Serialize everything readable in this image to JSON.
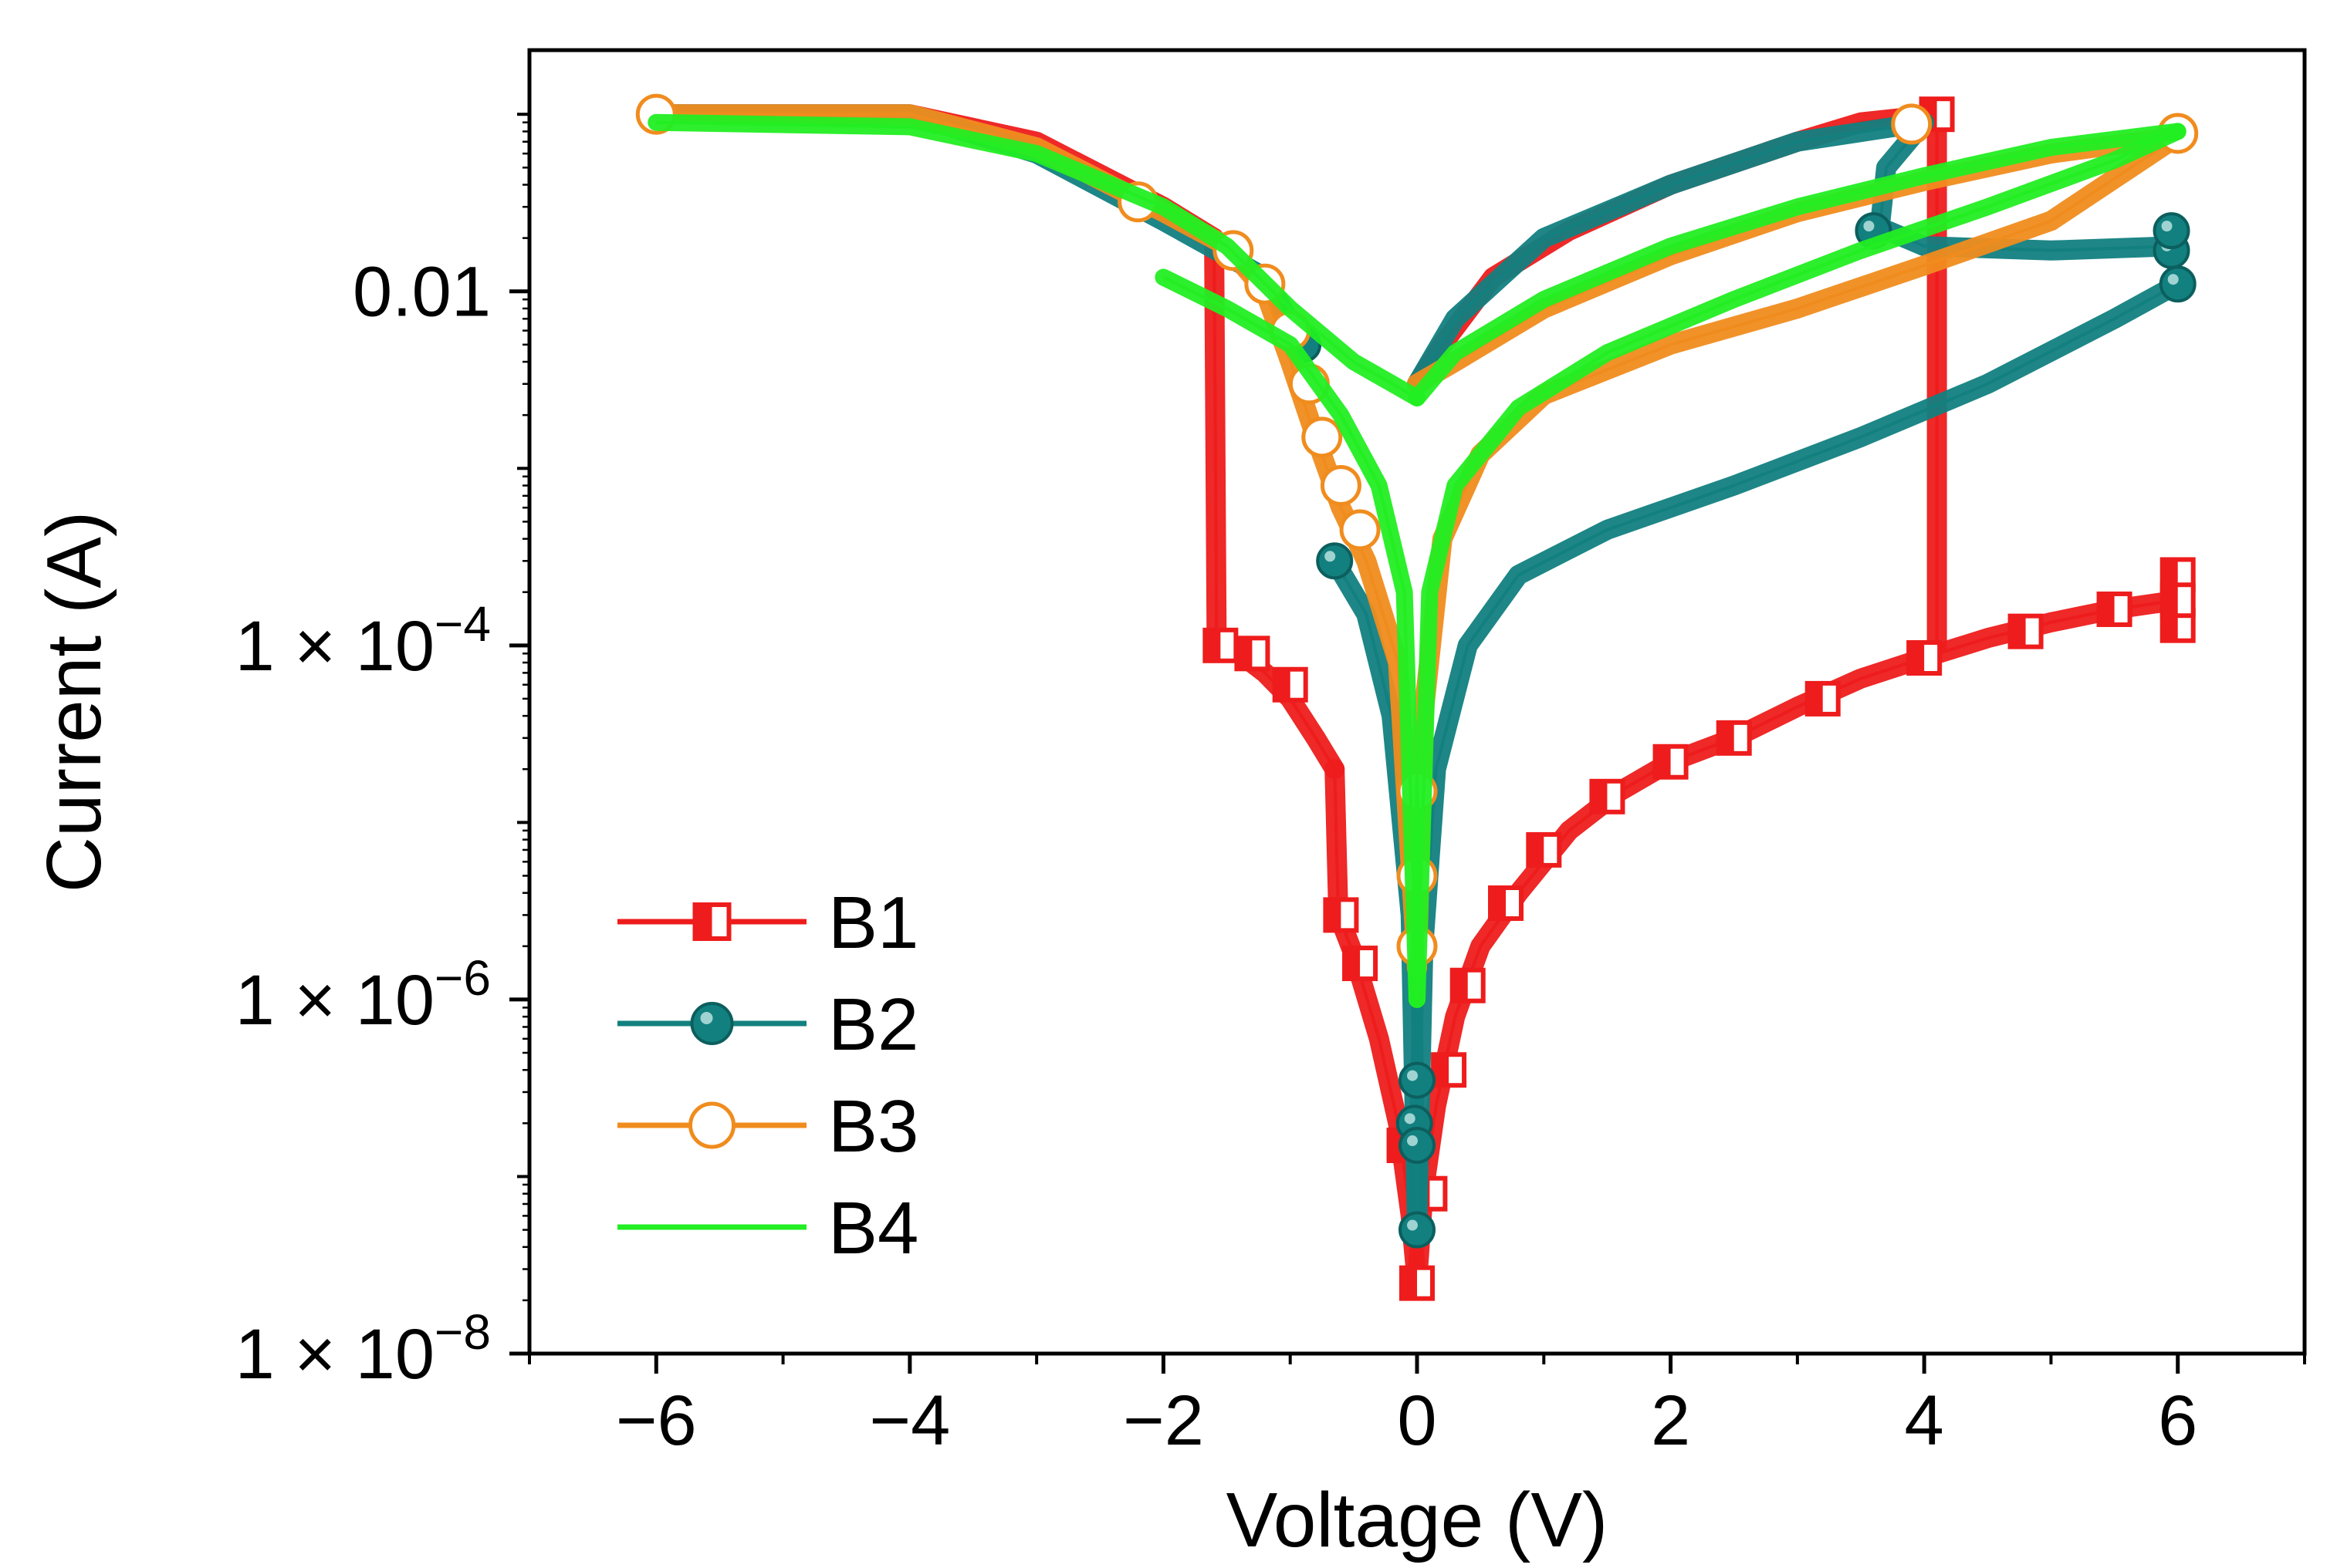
{
  "chart_data": {
    "type": "scatter",
    "title": "",
    "xlabel": "Voltage (V)",
    "ylabel": "Current (A)",
    "xscale": "linear",
    "yscale": "log",
    "xlim": [
      -7,
      7
    ],
    "ylim": [
      1e-08,
      0.12
    ],
    "xticks": [
      -6,
      -4,
      -2,
      0,
      2,
      4,
      6
    ],
    "xtick_labels": [
      "−6",
      "−4",
      "−2",
      "0",
      "2",
      "4",
      "6"
    ],
    "yticks": [
      {
        "value": 1e-08,
        "mantissa": "1 × 10",
        "exponent": "−8"
      },
      {
        "value": 1e-06,
        "mantissa": "1 × 10",
        "exponent": "−6"
      },
      {
        "value": 0.0001,
        "mantissa": "1 × 10",
        "exponent": "−4"
      },
      {
        "value": 0.01,
        "mantissa": "0.01",
        "exponent": ""
      }
    ],
    "legend": {
      "position": "lower-left",
      "entries": [
        "B1",
        "B2",
        "B3",
        "B4"
      ]
    },
    "series": [
      {
        "name": "B1",
        "color": "#ee1c1c",
        "marker": "half-filled-square",
        "segments": [
          [
            [
              -6,
              0.1
            ],
            [
              -4,
              0.1
            ],
            [
              -3,
              0.07
            ],
            [
              -2,
              0.03
            ],
            [
              -1.6,
              0.02
            ]
          ],
          [
            [
              -1.6,
              0.02
            ],
            [
              -1.58,
              0.0001
            ]
          ],
          [
            [
              -1.58,
              0.0001
            ],
            [
              -1.4,
              9e-05
            ],
            [
              -1.2,
              7e-05
            ],
            [
              -1.0,
              5e-05
            ],
            [
              -0.8,
              3e-05
            ],
            [
              -0.65,
              2e-05
            ]
          ],
          [
            [
              -0.65,
              2e-05
            ],
            [
              -0.62,
              3e-06
            ],
            [
              -0.5,
              1.8e-06
            ],
            [
              -0.3,
              6e-07
            ],
            [
              -0.15,
              2e-07
            ],
            [
              -0.05,
              6e-08
            ],
            [
              0,
              2.5e-08
            ]
          ],
          [
            [
              0,
              2.5e-08
            ],
            [
              0.05,
              8e-08
            ],
            [
              0.15,
              2.5e-07
            ],
            [
              0.3,
              8e-07
            ],
            [
              0.5,
              2e-06
            ],
            [
              0.8,
              4e-06
            ],
            [
              1.2,
              9e-06
            ],
            [
              1.6,
              1.5e-05
            ],
            [
              2.0,
              2.2e-05
            ],
            [
              2.5,
              3e-05
            ],
            [
              3.0,
              4.5e-05
            ],
            [
              3.5,
              6.5e-05
            ],
            [
              4.0,
              8.5e-05
            ],
            [
              4.5,
              0.00011
            ],
            [
              5.0,
              0.000135
            ],
            [
              5.5,
              0.00016
            ],
            [
              6.0,
              0.00018
            ]
          ],
          [
            [
              4.1,
              0.1
            ],
            [
              4.1,
              0.0001
            ]
          ],
          [
            [
              4.1,
              0.1
            ],
            [
              3.5,
              0.09
            ],
            [
              3.0,
              0.07
            ],
            [
              2.0,
              0.04
            ],
            [
              1.2,
              0.022
            ],
            [
              0.6,
              0.012
            ],
            [
              0.2,
              0.005
            ],
            [
              0,
              0.003
            ]
          ]
        ],
        "markers": [
          [
            -1.55,
            0.0001
          ],
          [
            -1.3,
            9e-05
          ],
          [
            -1.0,
            6e-05
          ],
          [
            -0.6,
            3e-06
          ],
          [
            -0.45,
            1.6e-06
          ],
          [
            -0.1,
            1.5e-07
          ],
          [
            0,
            2.5e-08
          ],
          [
            0.1,
            8e-08
          ],
          [
            0.25,
            4e-07
          ],
          [
            0.4,
            1.2e-06
          ],
          [
            0.7,
            3.5e-06
          ],
          [
            1.0,
            7e-06
          ],
          [
            1.5,
            1.4e-05
          ],
          [
            2.0,
            2.2e-05
          ],
          [
            2.5,
            3e-05
          ],
          [
            3.2,
            5e-05
          ],
          [
            4.0,
            8.5e-05
          ],
          [
            4.8,
            0.00012
          ],
          [
            5.5,
            0.00016
          ],
          [
            6.0,
            0.00013
          ],
          [
            6.0,
            0.00025
          ],
          [
            6.0,
            0.00018
          ],
          [
            4.1,
            0.1
          ]
        ]
      },
      {
        "name": "B2",
        "color": "#12807f",
        "marker": "filled-circle",
        "segments": [
          [
            [
              -6,
              0.1
            ],
            [
              -4,
              0.1
            ],
            [
              -3,
              0.06
            ],
            [
              -2,
              0.025
            ],
            [
              -1.2,
              0.012
            ],
            [
              -0.9,
              0.005
            ]
          ],
          [
            [
              -0.65,
              0.0003
            ],
            [
              -0.4,
              0.00015
            ],
            [
              -0.2,
              4e-05
            ],
            [
              -0.05,
              3e-06
            ],
            [
              0,
              5e-08
            ]
          ],
          [
            [
              0,
              5e-08
            ],
            [
              0.05,
              2e-06
            ],
            [
              0.15,
              2e-05
            ],
            [
              0.4,
              0.0001
            ],
            [
              0.8,
              0.00025
            ],
            [
              1.5,
              0.00045
            ],
            [
              2.5,
              0.0008
            ],
            [
              3.5,
              0.0015
            ],
            [
              4.5,
              0.003
            ],
            [
              5.5,
              0.007
            ],
            [
              6.0,
              0.011
            ]
          ],
          [
            [
              6.0,
              0.018
            ],
            [
              5.0,
              0.017
            ],
            [
              4.0,
              0.018
            ],
            [
              3.65,
              0.023
            ]
          ],
          [
            [
              3.65,
              0.023
            ],
            [
              3.7,
              0.05
            ],
            [
              4.0,
              0.09
            ],
            [
              3.0,
              0.07
            ],
            [
              2.0,
              0.04
            ],
            [
              1.0,
              0.02
            ],
            [
              0.3,
              0.007
            ],
            [
              0,
              0.003
            ]
          ]
        ],
        "markers": [
          [
            -0.65,
            0.0003
          ],
          [
            -0.9,
            0.005
          ],
          [
            -0.02,
            2e-07
          ],
          [
            0,
            3.5e-07
          ],
          [
            0,
            1.5e-07
          ],
          [
            0,
            5e-08
          ],
          [
            3.6,
            0.022
          ],
          [
            5.95,
            0.017
          ],
          [
            5.95,
            0.022
          ],
          [
            6.0,
            0.011
          ]
        ]
      },
      {
        "name": "B3",
        "color": "#f08c1e",
        "marker": "open-circle",
        "segments": [
          [
            [
              -6,
              0.1
            ],
            [
              -4,
              0.1
            ],
            [
              -3,
              0.065
            ],
            [
              -2,
              0.028
            ],
            [
              -1.5,
              0.018
            ],
            [
              -1.2,
              0.01
            ]
          ],
          [
            [
              -1.2,
              0.01
            ],
            [
              -1.0,
              0.004
            ],
            [
              -0.8,
              0.0015
            ],
            [
              -0.6,
              0.0006
            ],
            [
              -0.4,
              0.0003
            ],
            [
              -0.15,
              8e-05
            ],
            [
              0,
              1.5e-06
            ]
          ],
          [
            [
              0,
              1.5e-06
            ],
            [
              0.05,
              4e-05
            ],
            [
              0.2,
              0.0004
            ],
            [
              0.5,
              0.0012
            ],
            [
              1.0,
              0.0026
            ],
            [
              2.0,
              0.005
            ],
            [
              3.0,
              0.008
            ],
            [
              4.0,
              0.014
            ],
            [
              5.0,
              0.025
            ],
            [
              6.0,
              0.075
            ]
          ],
          [
            [
              6.0,
              0.075
            ],
            [
              5.0,
              0.06
            ],
            [
              4.0,
              0.042
            ],
            [
              3.0,
              0.028
            ],
            [
              2.0,
              0.016
            ],
            [
              1.0,
              0.008
            ],
            [
              0.3,
              0.004
            ],
            [
              0,
              0.003
            ]
          ]
        ],
        "markers": [
          [
            -6,
            0.1
          ],
          [
            -2.2,
            0.032
          ],
          [
            -1.45,
            0.017
          ],
          [
            -1.2,
            0.011
          ],
          [
            -1.0,
            0.006
          ],
          [
            -0.85,
            0.003
          ],
          [
            -0.75,
            0.0015
          ],
          [
            -0.6,
            0.0008
          ],
          [
            -0.45,
            0.00045
          ],
          [
            0,
            1.5e-05
          ],
          [
            0,
            5e-06
          ],
          [
            0,
            2e-06
          ],
          [
            3.9,
            0.088
          ],
          [
            6.0,
            0.078
          ]
        ]
      },
      {
        "name": "B4",
        "color": "#22ee22",
        "marker": "none",
        "segments": [
          [
            [
              -6,
              0.09
            ],
            [
              -4,
              0.085
            ],
            [
              -3,
              0.06
            ],
            [
              -2,
              0.03
            ],
            [
              -1.5,
              0.018
            ],
            [
              -1,
              0.008
            ],
            [
              -0.5,
              0.004
            ],
            [
              0,
              0.0025
            ]
          ],
          [
            [
              -2,
              0.012
            ],
            [
              -1.5,
              0.008
            ],
            [
              -1,
              0.005
            ],
            [
              -0.6,
              0.002
            ],
            [
              -0.3,
              0.0008
            ],
            [
              -0.1,
              0.0002
            ],
            [
              0,
              1e-06
            ]
          ],
          [
            [
              0,
              1e-06
            ],
            [
              0.1,
              0.0002
            ],
            [
              0.3,
              0.0008
            ],
            [
              0.8,
              0.0022
            ],
            [
              1.5,
              0.0045
            ],
            [
              2.5,
              0.009
            ],
            [
              3.5,
              0.017
            ],
            [
              4.5,
              0.03
            ],
            [
              5.5,
              0.055
            ],
            [
              6.0,
              0.08
            ]
          ],
          [
            [
              6.0,
              0.08
            ],
            [
              5.0,
              0.065
            ],
            [
              4.0,
              0.045
            ],
            [
              3.0,
              0.03
            ],
            [
              2.0,
              0.018
            ],
            [
              1.0,
              0.009
            ],
            [
              0.3,
              0.0045
            ],
            [
              0,
              0.0025
            ]
          ]
        ],
        "markers": []
      }
    ]
  }
}
